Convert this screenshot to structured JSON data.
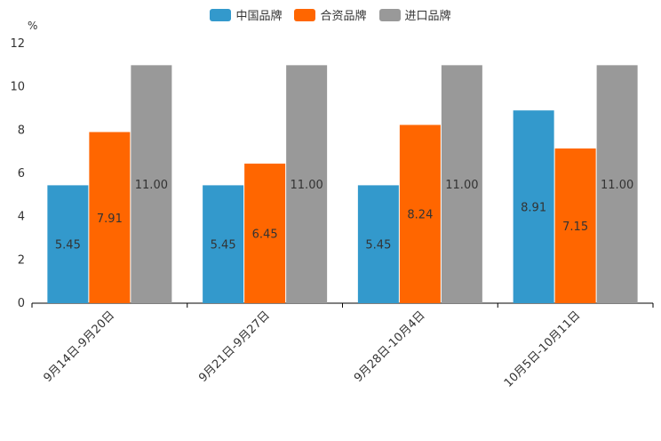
{
  "chart_data": {
    "type": "bar",
    "unit": "%",
    "categories": [
      "9月14日-9月20日",
      "9月21日-9月27日",
      "9月28日-10月4日",
      "10月5日-10月11日"
    ],
    "series": [
      {
        "name": "中国品牌",
        "color": "#3399CC",
        "values": [
          5.45,
          5.45,
          5.45,
          8.91
        ],
        "labels": [
          "5.45",
          "5.45",
          "5.45",
          "8.91"
        ]
      },
      {
        "name": "合资品牌",
        "color": "#FF6600",
        "values": [
          7.91,
          6.45,
          8.24,
          7.15
        ],
        "labels": [
          "7.91",
          "6.45",
          "8.24",
          "7.15"
        ]
      },
      {
        "name": "进口品牌",
        "color": "#999999",
        "values": [
          11.0,
          11.0,
          11.0,
          11.0
        ],
        "labels": [
          "11.00",
          "11.00",
          "11.00",
          "11.00"
        ]
      }
    ],
    "ylim": [
      0,
      12
    ],
    "yticks": [
      "0",
      "2",
      "4",
      "6",
      "8",
      "10",
      "12"
    ],
    "legend_position": "top-center"
  }
}
